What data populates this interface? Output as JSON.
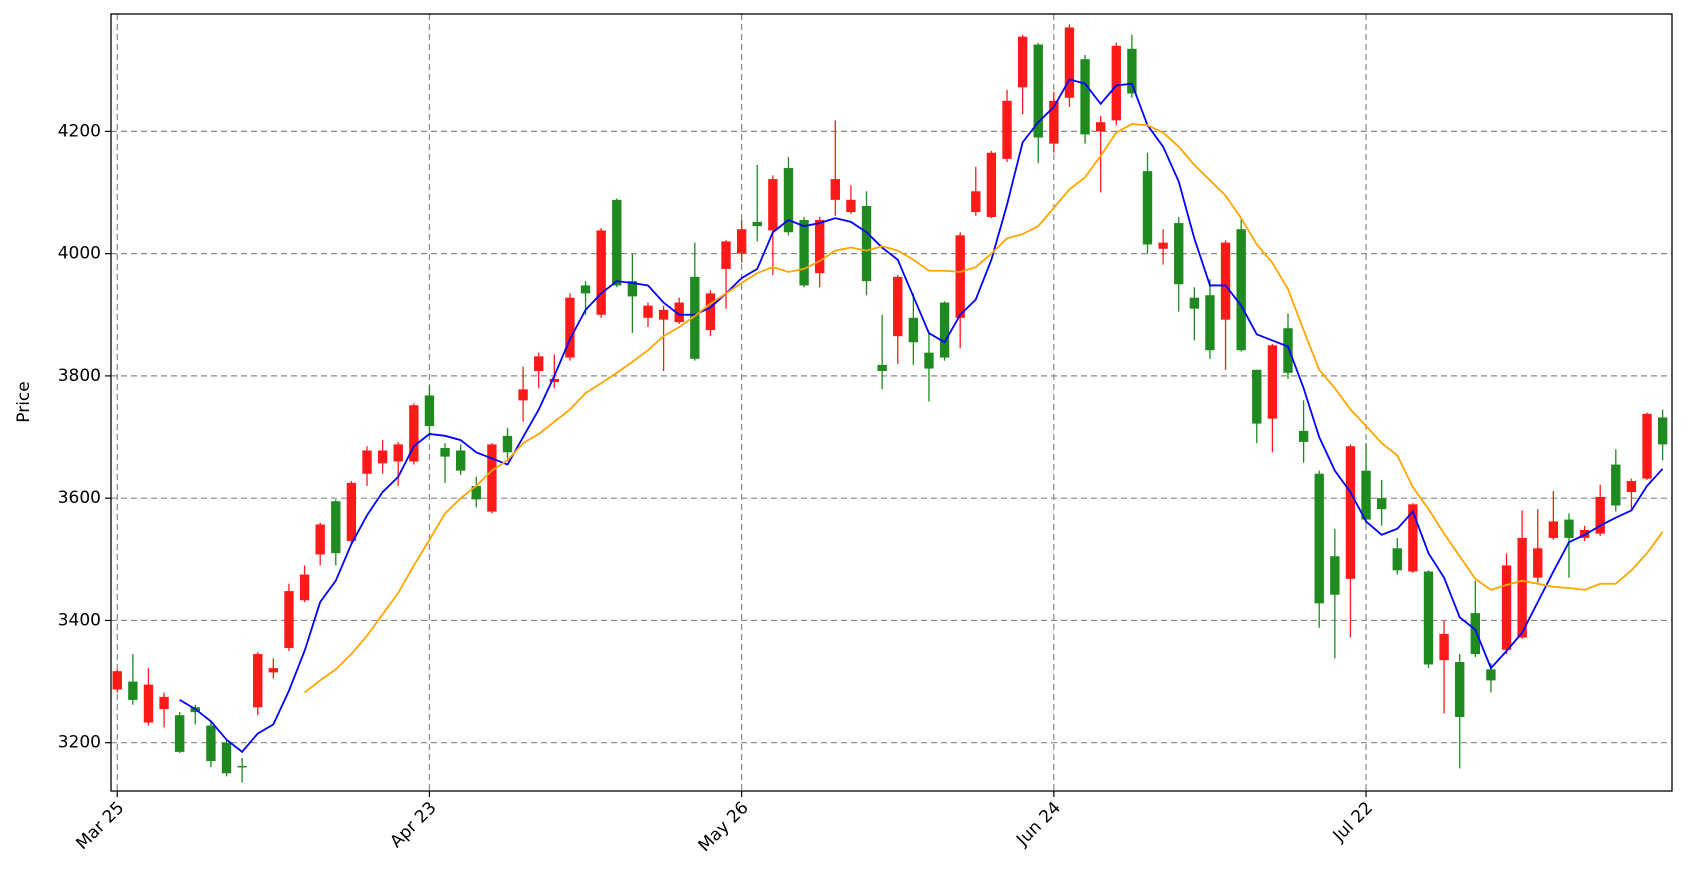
{
  "chart_data": {
    "type": "candlestick",
    "y_label": "Price",
    "categories": [
      "Mar 25",
      null,
      null,
      null,
      null,
      null,
      null,
      null,
      null,
      null,
      null,
      null,
      null,
      null,
      null,
      null,
      null,
      null,
      null,
      null,
      "Apr 23",
      null,
      null,
      null,
      null,
      null,
      null,
      null,
      null,
      null,
      null,
      null,
      null,
      null,
      null,
      null,
      null,
      null,
      null,
      null,
      "May 26",
      null,
      null,
      null,
      null,
      null,
      null,
      null,
      null,
      null,
      null,
      null,
      null,
      null,
      null,
      null,
      null,
      null,
      null,
      null,
      "Jun 24",
      null,
      null,
      null,
      null,
      null,
      null,
      null,
      null,
      null,
      null,
      null,
      null,
      null,
      null,
      null,
      null,
      null,
      null,
      null,
      "Jul 22",
      null,
      null,
      null,
      null,
      null,
      null,
      null,
      null,
      null,
      null,
      null,
      null,
      null,
      null,
      null,
      null,
      null,
      null,
      null
    ],
    "open": [
      3287,
      3300,
      3233,
      3255,
      3245,
      3258,
      3228,
      3200,
      3162,
      3258,
      3315,
      3355,
      3433,
      3508,
      3595,
      3530,
      3640,
      3657,
      3660,
      3660,
      3768,
      3682,
      3678,
      3620,
      3578,
      3702,
      3760,
      3808,
      3790,
      3830,
      3948,
      3900,
      4088,
      3955,
      3895,
      3892,
      3888,
      3962,
      3875,
      3975,
      4000,
      4052,
      4038,
      4140,
      4055,
      3968,
      4088,
      4068,
      4078,
      3818,
      3865,
      3895,
      3838,
      3920,
      3895,
      4068,
      4060,
      4155,
      4272,
      4342,
      4180,
      4255,
      4318,
      4200,
      4218,
      4335,
      4135,
      4008,
      4050,
      3928,
      3932,
      3892,
      4040,
      3810,
      3730,
      3878,
      3710,
      3640,
      3505,
      3468,
      3645,
      3600,
      3518,
      3480,
      3480,
      3335,
      3332,
      3412,
      3320,
      3352,
      3372,
      3470,
      3535,
      3565,
      3535,
      3542,
      3655,
      3610,
      3632,
      3732
    ],
    "high": [
      3320,
      3345,
      3322,
      3282,
      3250,
      3262,
      3235,
      3205,
      3175,
      3348,
      3338,
      3460,
      3490,
      3560,
      3598,
      3628,
      3685,
      3695,
      3692,
      3755,
      3785,
      3690,
      3688,
      3635,
      3690,
      3715,
      3815,
      3838,
      3835,
      3935,
      3955,
      4042,
      4090,
      4000,
      3920,
      3915,
      3928,
      4018,
      3940,
      4022,
      4055,
      4145,
      4128,
      4158,
      4060,
      4060,
      4218,
      4112,
      4102,
      3900,
      3965,
      3935,
      3872,
      3922,
      4035,
      4142,
      4168,
      4268,
      4358,
      4345,
      4265,
      4375,
      4325,
      4225,
      4345,
      4358,
      4165,
      4040,
      4060,
      3945,
      3958,
      4022,
      4058,
      3810,
      3852,
      3902,
      3760,
      3645,
      3550,
      3688,
      3690,
      3630,
      3535,
      3592,
      3482,
      3400,
      3345,
      3465,
      3330,
      3510,
      3580,
      3582,
      3612,
      3575,
      3555,
      3622,
      3680,
      3632,
      3740,
      3745
    ],
    "low": [
      3282,
      3262,
      3228,
      3225,
      3183,
      3230,
      3160,
      3145,
      3135,
      3245,
      3305,
      3350,
      3430,
      3490,
      3490,
      3525,
      3620,
      3640,
      3620,
      3655,
      3700,
      3625,
      3638,
      3585,
      3575,
      3665,
      3725,
      3780,
      3780,
      3825,
      3900,
      3895,
      3945,
      3870,
      3880,
      3808,
      3885,
      3825,
      3865,
      3910,
      3985,
      4020,
      3965,
      4030,
      3945,
      3945,
      4062,
      4065,
      3932,
      3778,
      3820,
      3818,
      3758,
      3825,
      3845,
      4062,
      4058,
      4150,
      4228,
      4148,
      4165,
      4240,
      4180,
      4100,
      4210,
      4255,
      4000,
      3982,
      3905,
      3858,
      3828,
      3810,
      3840,
      3690,
      3675,
      3795,
      3658,
      3388,
      3338,
      3372,
      3558,
      3555,
      3475,
      3478,
      3322,
      3248,
      3158,
      3340,
      3282,
      3345,
      3370,
      3462,
      3532,
      3470,
      3530,
      3538,
      3578,
      3582,
      3630,
      3662
    ],
    "close": [
      3317,
      3270,
      3295,
      3275,
      3185,
      3250,
      3170,
      3150,
      3160,
      3345,
      3322,
      3448,
      3475,
      3557,
      3510,
      3625,
      3678,
      3678,
      3688,
      3752,
      3718,
      3668,
      3645,
      3598,
      3688,
      3675,
      3778,
      3832,
      3795,
      3928,
      3935,
      4038,
      3948,
      3930,
      3915,
      3908,
      3920,
      3828,
      3935,
      4020,
      4040,
      4045,
      4122,
      4035,
      3948,
      4055,
      4122,
      4088,
      3955,
      3808,
      3962,
      3855,
      3812,
      3830,
      4030,
      4102,
      4165,
      4250,
      4355,
      4190,
      4250,
      4370,
      4195,
      4215,
      4340,
      4262,
      4015,
      4018,
      3950,
      3910,
      3842,
      4018,
      3842,
      3722,
      3850,
      3805,
      3692,
      3428,
      3442,
      3685,
      3565,
      3582,
      3482,
      3590,
      3328,
      3378,
      3242,
      3345,
      3302,
      3490,
      3535,
      3518,
      3562,
      3535,
      3548,
      3602,
      3588,
      3628,
      3738,
      3688
    ],
    "up_color": "#ff1a1a",
    "down_color": "#1f8a1f",
    "series": [
      {
        "color": "#0000ff",
        "values": [
          null,
          null,
          null,
          null,
          3270,
          3255,
          3235,
          3205,
          3185,
          3215,
          3230,
          3285,
          3350,
          3430,
          3465,
          3525,
          3572,
          3610,
          3635,
          3685,
          3705,
          3702,
          3695,
          3675,
          3665,
          3655,
          3700,
          3745,
          3800,
          3860,
          3908,
          3935,
          3955,
          3952,
          3948,
          3920,
          3900,
          3900,
          3912,
          3935,
          3960,
          3975,
          4035,
          4055,
          4045,
          4050,
          4058,
          4052,
          4035,
          4010,
          3990,
          3930,
          3870,
          3855,
          3900,
          3925,
          3990,
          4080,
          4182,
          4215,
          4240,
          4285,
          4278,
          4245,
          4275,
          4278,
          4210,
          4175,
          4118,
          4025,
          3948,
          3948,
          3915,
          3868,
          3858,
          3848,
          3780,
          3700,
          3645,
          3610,
          3562,
          3540,
          3550,
          3578,
          3510,
          3470,
          3405,
          3385,
          3322,
          3350,
          3380,
          3430,
          3480,
          3528,
          3540,
          3555,
          3568,
          3580,
          3620,
          3648
        ]
      },
      {
        "color": "#ffa500",
        "values": [
          null,
          null,
          null,
          null,
          null,
          null,
          null,
          null,
          null,
          null,
          null,
          null,
          3282,
          3302,
          3320,
          3345,
          3375,
          3410,
          3445,
          3490,
          3532,
          3575,
          3600,
          3620,
          3645,
          3662,
          3690,
          3705,
          3725,
          3745,
          3772,
          3788,
          3805,
          3823,
          3842,
          3865,
          3880,
          3898,
          3918,
          3935,
          3952,
          3968,
          3978,
          3970,
          3975,
          3988,
          4005,
          4010,
          4005,
          4012,
          4005,
          3990,
          3972,
          3972,
          3970,
          3978,
          4000,
          4025,
          4032,
          4045,
          4075,
          4105,
          4125,
          4160,
          4198,
          4212,
          4210,
          4198,
          4175,
          4145,
          4120,
          4095,
          4058,
          4015,
          3985,
          3942,
          3875,
          3810,
          3780,
          3745,
          3718,
          3690,
          3670,
          3618,
          3582,
          3542,
          3505,
          3468,
          3450,
          3458,
          3465,
          3460,
          3455,
          3453,
          3450,
          3460,
          3460,
          3482,
          3510,
          3545
        ]
      }
    ],
    "ylim": [
      3121,
      4392
    ],
    "yticks": [
      3200,
      3400,
      3600,
      3800,
      4000,
      4200
    ],
    "grid": true
  }
}
